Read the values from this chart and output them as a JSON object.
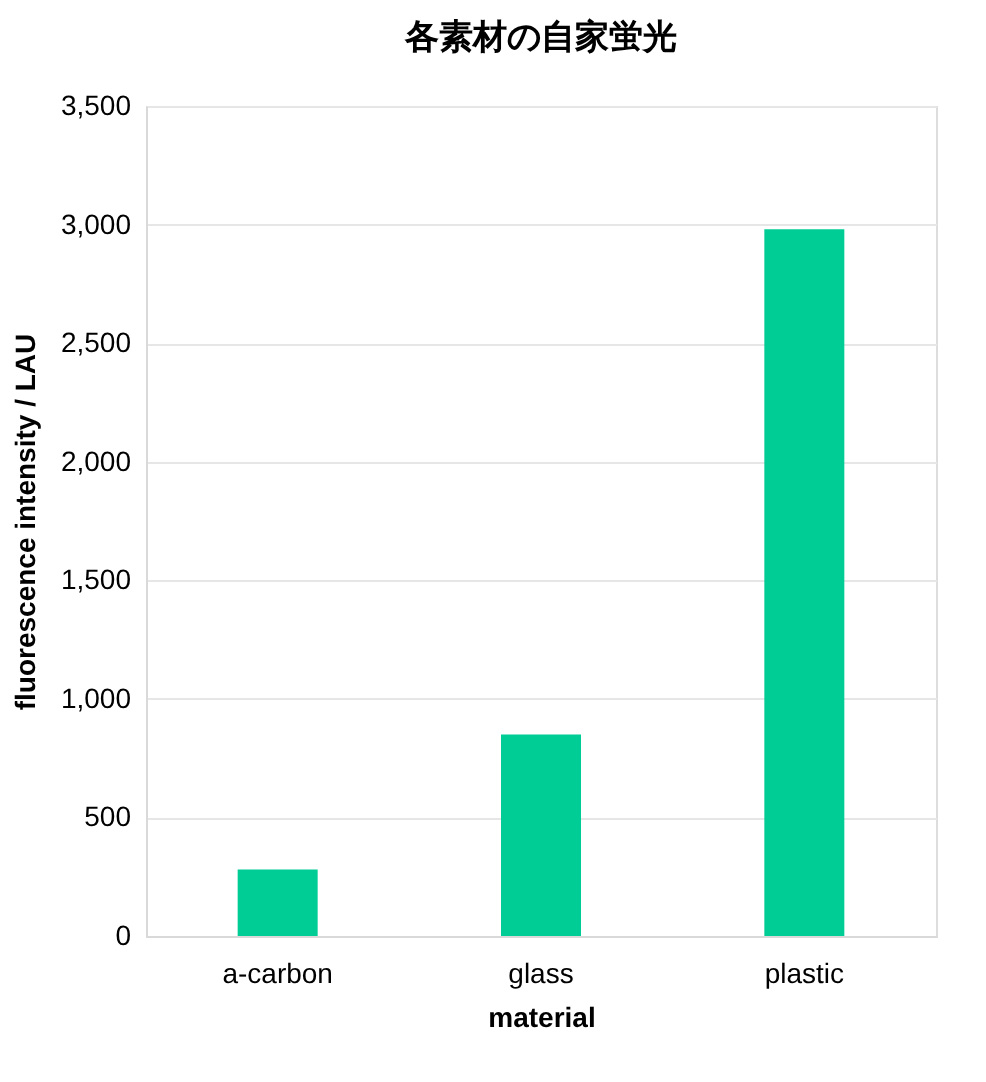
{
  "chart_data": {
    "type": "bar",
    "title": "各素材の自家蛍光",
    "xlabel": "material",
    "ylabel": "fluorescence intensity / LAU",
    "categories": [
      "a-carbon",
      "glass",
      "plastic"
    ],
    "values": [
      280,
      850,
      2980
    ],
    "color": "#00cc96",
    "ylim": [
      0,
      3500
    ],
    "yticks": [
      {
        "value": 0,
        "label": "0"
      },
      {
        "value": 500,
        "label": "500"
      },
      {
        "value": 1000,
        "label": "1,000"
      },
      {
        "value": 1500,
        "label": "1,500"
      },
      {
        "value": 2000,
        "label": "2,000"
      },
      {
        "value": 2500,
        "label": "2,500"
      },
      {
        "value": 3000,
        "label": "3,000"
      },
      {
        "value": 3500,
        "label": "3,500"
      }
    ],
    "grid": "y"
  }
}
